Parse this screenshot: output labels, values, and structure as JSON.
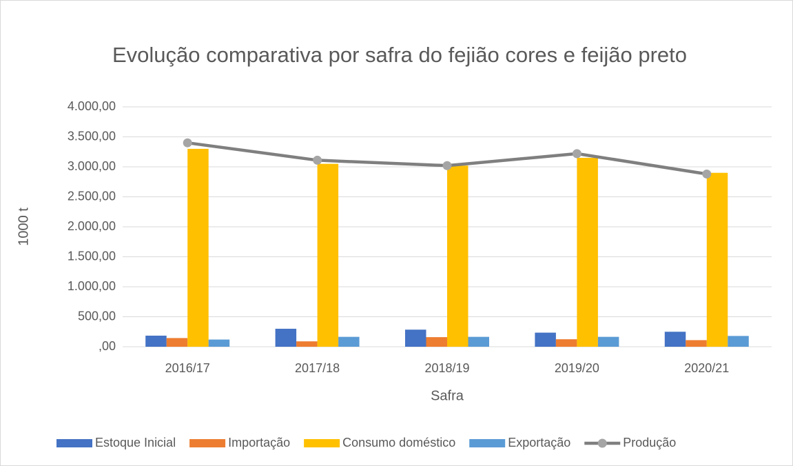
{
  "chart_data": {
    "type": "bar",
    "title": "Evolução comparativa por safra do fejião cores e feijão preto",
    "x_label": "Safra",
    "y_label": "1000 t",
    "categories": [
      "2016/17",
      "2017/18",
      "2018/19",
      "2019/20",
      "2020/21"
    ],
    "series": [
      {
        "name": "Estoque Inicial",
        "color": "#4472c4",
        "values": [
          185,
          300,
          285,
          235,
          250
        ]
      },
      {
        "name": "Importação",
        "color": "#ed7d31",
        "values": [
          145,
          90,
          160,
          125,
          110
        ]
      },
      {
        "name": "Consumo doméstico",
        "color": "#ffc000",
        "values": [
          3300,
          3050,
          3020,
          3150,
          2900
        ]
      },
      {
        "name": "Exportação",
        "color": "#5b9bd5",
        "values": [
          120,
          165,
          165,
          165,
          180
        ]
      },
      {
        "name": "Produção",
        "type": "line",
        "color": "#7f7f7f",
        "marker_color": "#a5a5a5",
        "values": [
          3400,
          3110,
          3020,
          3220,
          2880
        ]
      }
    ],
    "ylim": [
      0,
      4000
    ],
    "yticks": [
      {
        "value": 0,
        "label": ",00"
      },
      {
        "value": 500,
        "label": "500,00"
      },
      {
        "value": 1000,
        "label": "1.000,00"
      },
      {
        "value": 1500,
        "label": "1.500,00"
      },
      {
        "value": 2000,
        "label": "2.000,00"
      },
      {
        "value": 2500,
        "label": "2.500,00"
      },
      {
        "value": 3000,
        "label": "3.000,00"
      },
      {
        "value": 3500,
        "label": "3.500,00"
      },
      {
        "value": 4000,
        "label": "4.000,00"
      }
    ],
    "grid": true,
    "legend": "bottom"
  }
}
